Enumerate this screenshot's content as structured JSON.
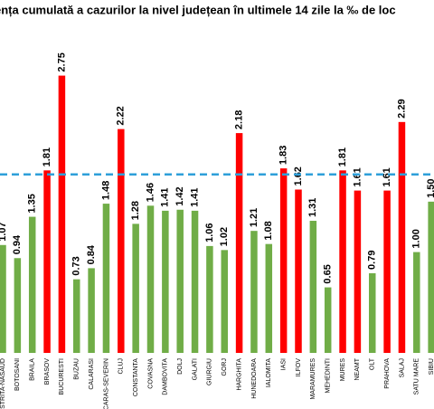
{
  "chart_data": {
    "type": "bar",
    "title": "ența cumulată a cazurilor la nivel județean în ultimele 14 zile la ‰ de loc",
    "categories": [
      "BISTRITA-NASAUD",
      "BOTOSANI",
      "BRAILA",
      "BRASOV",
      "BUCURESTI",
      "BUZAU",
      "CALARASI",
      "CARAS-SEVERIN",
      "CLUJ",
      "CONSTANTA",
      "COVASNA",
      "DAMBOVITA",
      "DOLJ",
      "GALATI",
      "GIURGIU",
      "GORJ",
      "HARGHITA",
      "HUNEDOARA",
      "IALOMITA",
      "IASI",
      "ILFOV",
      "MARAMURES",
      "MEHEDINTI",
      "MURES",
      "NEAMT",
      "OLT",
      "PRAHOVA",
      "SALAJ",
      "SATU MARE",
      "SIBIU"
    ],
    "values": [
      1.07,
      0.94,
      1.35,
      1.81,
      2.75,
      0.73,
      0.84,
      1.48,
      2.22,
      1.28,
      1.46,
      1.41,
      1.42,
      1.41,
      1.06,
      1.02,
      2.18,
      1.21,
      1.08,
      1.83,
      1.62,
      1.31,
      0.65,
      1.81,
      1.61,
      0.79,
      1.61,
      2.29,
      1.0,
      1.5
    ],
    "value_labels": [
      "1.07",
      "0.94",
      "1.35",
      "1.81",
      "2.75",
      "0.73",
      "0.84",
      "1.48",
      "2.22",
      "1.28",
      "1.46",
      "1.41",
      "1.42",
      "1.41",
      "1.06",
      "1.02",
      "2.18",
      "1.21",
      "1.08",
      "1.83",
      "1.62",
      "1.31",
      "0.65",
      "1.81",
      "1.61",
      "0.79",
      "1.61",
      "2.29",
      "1.00",
      "1.50"
    ],
    "colors": [
      "#70ad47",
      "#70ad47",
      "#70ad47",
      "#ff0000",
      "#ff0000",
      "#70ad47",
      "#70ad47",
      "#70ad47",
      "#ff0000",
      "#70ad47",
      "#70ad47",
      "#70ad47",
      "#70ad47",
      "#70ad47",
      "#70ad47",
      "#70ad47",
      "#ff0000",
      "#70ad47",
      "#70ad47",
      "#ff0000",
      "#ff0000",
      "#70ad47",
      "#70ad47",
      "#ff0000",
      "#ff0000",
      "#70ad47",
      "#ff0000",
      "#ff0000",
      "#70ad47",
      "#70ad47"
    ],
    "reference_line": 1.77,
    "reference_color": "#2e9fd9",
    "ylim": [
      0,
      3.5
    ]
  }
}
